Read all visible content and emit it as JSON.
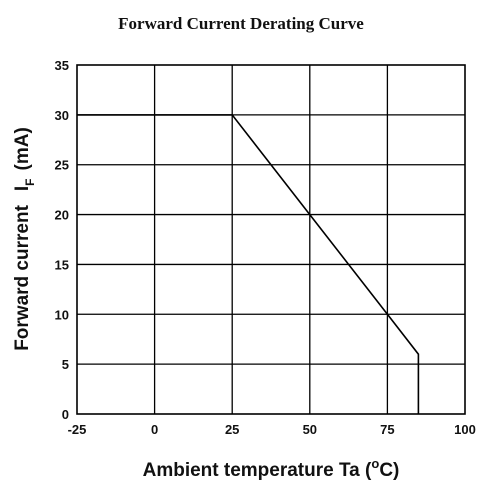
{
  "chart_data": {
    "type": "line",
    "title": "Forward Current Derating Curve",
    "xlabel": {
      "main": "Ambient temperature Ta (",
      "degree": "o",
      "unit_end": "C)"
    },
    "ylabel": {
      "main": "Forward current",
      "symbol": "I",
      "subscript": "F",
      "unit": "(mA)"
    },
    "xlim": [
      -25,
      100
    ],
    "ylim": [
      0,
      35
    ],
    "x_ticks": [
      "-25",
      "0",
      "25",
      "50",
      "75",
      "100"
    ],
    "y_ticks": [
      "0",
      "5",
      "10",
      "15",
      "20",
      "25",
      "30",
      "35"
    ],
    "grid": true,
    "series": [
      {
        "x": [
          -25,
          25,
          50,
          75,
          85,
          85
        ],
        "y": [
          30,
          30,
          20,
          10,
          6,
          0
        ]
      }
    ]
  }
}
